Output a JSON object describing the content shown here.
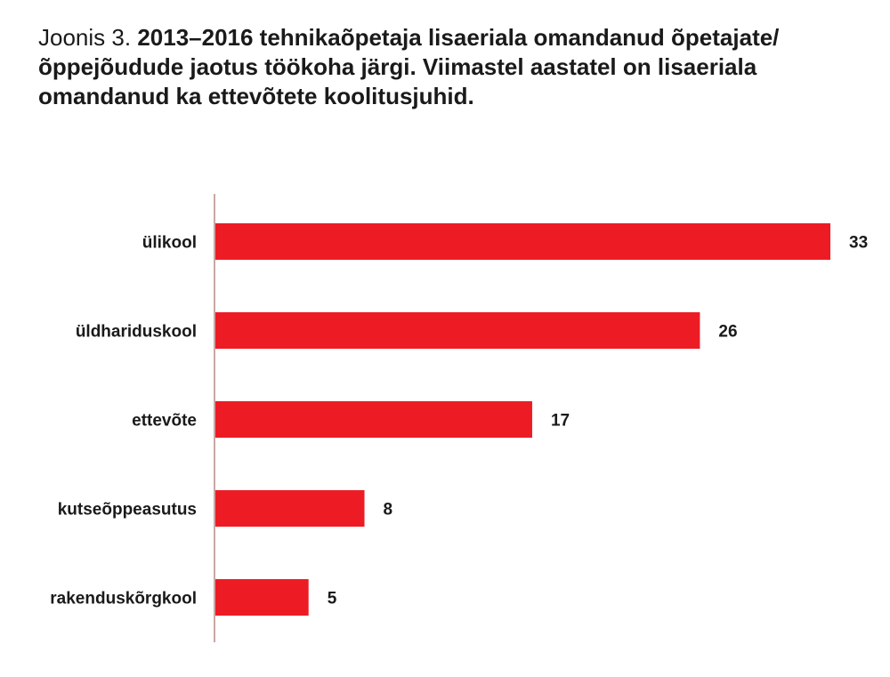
{
  "title": {
    "prefix": "Joonis 3.",
    "text": "2013–2016 tehnikaõpetaja lisaeriala omandanud õpetajate/õppejõudude jaotus töökoha järgi. Viimastel aastatel on lisaeriala omandanud ka ettevõtete koolitusjuhid."
  },
  "colors": {
    "bar": "#ed1c24",
    "axis": "#c9a8a4",
    "text": "#1a1a1a"
  },
  "chart_data": {
    "type": "bar",
    "orientation": "horizontal",
    "categories": [
      "ülikool",
      "üldhariduskool",
      "ettevõte",
      "kutseõppeasutus",
      "rakenduskõrgkool"
    ],
    "values": [
      33,
      26,
      17,
      8,
      5
    ],
    "xlim": [
      0,
      33
    ],
    "grid": false,
    "legend": "none"
  }
}
